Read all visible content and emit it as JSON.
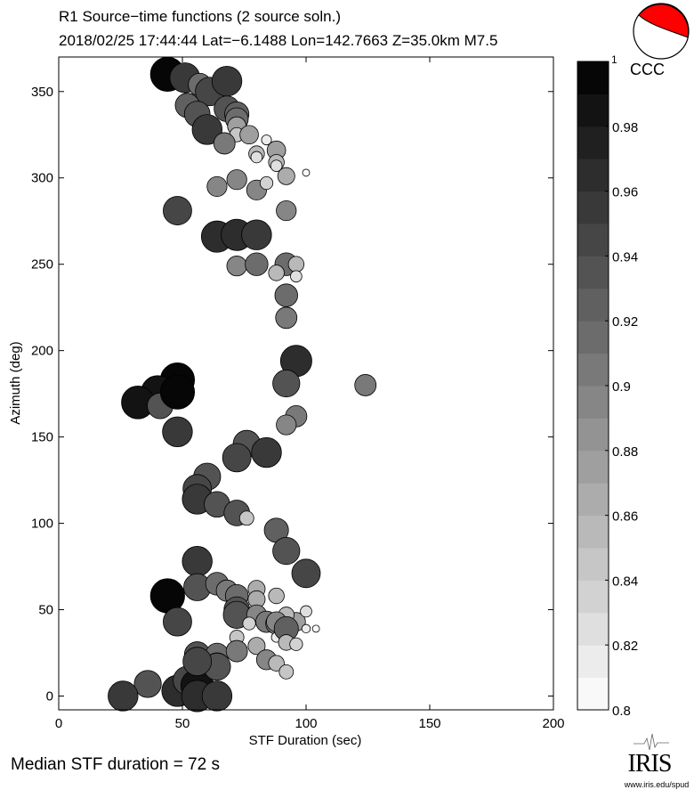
{
  "chart_data": {
    "type": "scatter",
    "title": "R1 Source−time functions (2 source soln.)",
    "subtitle": "2018/02/25 17:44:44  Lat=−6.1488 Lon=142.7663  Z=35.0km  M7.5",
    "xlabel": "STF Duration (sec)",
    "ylabel": "Azimuth (deg)",
    "xlim": [
      0,
      200
    ],
    "ylim": [
      -8,
      370
    ],
    "xticks": [
      "0",
      "50",
      "100",
      "150",
      "200"
    ],
    "xtick_values": [
      0,
      50,
      100,
      150,
      200
    ],
    "yticks": [
      "0",
      "50",
      "100",
      "150",
      "200",
      "250",
      "300",
      "350"
    ],
    "ytick_values": [
      0,
      50,
      100,
      150,
      200,
      250,
      300,
      350
    ],
    "grid": false,
    "colorbar": {
      "label": "CCC",
      "range": [
        0.8,
        1.0
      ],
      "levels": 20,
      "ticks": [
        "1",
        "0.98",
        "0.96",
        "0.94",
        "0.92",
        "0.9",
        "0.88",
        "0.86",
        "0.84",
        "0.82",
        "0.8"
      ],
      "tick_values": [
        1,
        0.98,
        0.96,
        0.94,
        0.92,
        0.9,
        0.88,
        0.86,
        0.84,
        0.82,
        0.8
      ]
    },
    "points_fields": [
      "duration_sec",
      "azimuth_deg",
      "ccc"
    ],
    "points": [
      [
        44,
        360,
        0.99
      ],
      [
        51,
        358,
        0.96
      ],
      [
        57,
        354,
        0.91
      ],
      [
        61,
        350,
        0.95
      ],
      [
        68,
        356,
        0.96
      ],
      [
        52,
        342,
        0.92
      ],
      [
        56,
        337,
        0.93
      ],
      [
        68,
        340,
        0.93
      ],
      [
        72,
        337,
        0.92
      ],
      [
        72,
        334,
        0.91
      ],
      [
        60,
        328,
        0.96
      ],
      [
        72,
        330,
        0.88
      ],
      [
        72,
        325,
        0.85
      ],
      [
        67,
        320,
        0.9
      ],
      [
        77,
        325,
        0.88
      ],
      [
        84,
        322,
        0.82
      ],
      [
        88,
        316,
        0.88
      ],
      [
        80,
        314,
        0.86
      ],
      [
        80,
        312,
        0.83
      ],
      [
        88,
        309,
        0.86
      ],
      [
        88,
        307,
        0.83
      ],
      [
        92,
        301,
        0.87
      ],
      [
        100,
        303,
        0.8
      ],
      [
        64,
        295,
        0.89
      ],
      [
        72,
        299,
        0.89
      ],
      [
        80,
        293,
        0.89
      ],
      [
        84,
        297,
        0.84
      ],
      [
        92,
        281,
        0.89
      ],
      [
        48,
        281,
        0.95
      ],
      [
        64,
        266,
        0.97
      ],
      [
        72,
        267,
        0.97
      ],
      [
        80,
        267,
        0.96
      ],
      [
        72,
        249,
        0.89
      ],
      [
        80,
        250,
        0.91
      ],
      [
        92,
        250,
        0.91
      ],
      [
        96,
        250,
        0.86
      ],
      [
        88,
        245,
        0.86
      ],
      [
        96,
        243,
        0.83
      ],
      [
        92,
        232,
        0.91
      ],
      [
        92,
        219,
        0.9
      ],
      [
        96,
        194,
        0.97
      ],
      [
        124,
        180,
        0.9
      ],
      [
        92,
        181,
        0.94
      ],
      [
        48,
        183,
        0.99
      ],
      [
        40,
        176,
        0.98
      ],
      [
        32,
        170,
        0.98
      ],
      [
        41,
        168,
        0.93
      ],
      [
        48,
        176,
        0.99
      ],
      [
        46,
        154,
        0.88
      ],
      [
        48,
        153,
        0.96
      ],
      [
        96,
        162,
        0.9
      ],
      [
        92,
        157,
        0.89
      ],
      [
        76,
        146,
        0.94
      ],
      [
        72,
        138,
        0.95
      ],
      [
        84,
        141,
        0.96
      ],
      [
        60,
        127,
        0.94
      ],
      [
        56,
        120,
        0.95
      ],
      [
        56,
        114,
        0.96
      ],
      [
        64,
        111,
        0.93
      ],
      [
        72,
        106,
        0.93
      ],
      [
        76,
        103,
        0.85
      ],
      [
        88,
        96,
        0.92
      ],
      [
        92,
        84,
        0.94
      ],
      [
        100,
        71,
        0.95
      ],
      [
        56,
        78,
        0.96
      ],
      [
        44,
        58,
        0.99
      ],
      [
        48,
        43,
        0.95
      ],
      [
        56,
        63,
        0.94
      ],
      [
        64,
        65,
        0.91
      ],
      [
        68,
        61,
        0.9
      ],
      [
        72,
        58,
        0.91
      ],
      [
        72,
        50,
        0.93
      ],
      [
        72,
        47,
        0.94
      ],
      [
        80,
        62,
        0.87
      ],
      [
        80,
        56,
        0.87
      ],
      [
        88,
        58,
        0.86
      ],
      [
        80,
        47,
        0.89
      ],
      [
        84,
        43,
        0.9
      ],
      [
        88,
        42,
        0.9
      ],
      [
        92,
        44,
        0.88
      ],
      [
        96,
        43,
        0.88
      ],
      [
        92,
        47,
        0.86
      ],
      [
        88,
        43,
        0.89
      ],
      [
        100,
        49,
        0.83
      ],
      [
        100,
        39,
        0.81
      ],
      [
        104,
        39,
        0.8
      ],
      [
        88,
        34,
        0.82
      ],
      [
        77,
        42,
        0.84
      ],
      [
        92,
        39,
        0.92
      ],
      [
        72,
        34,
        0.85
      ],
      [
        56,
        24,
        0.93
      ],
      [
        64,
        24,
        0.91
      ],
      [
        64,
        18,
        0.92
      ],
      [
        72,
        26,
        0.9
      ],
      [
        80,
        29,
        0.87
      ],
      [
        84,
        21,
        0.89
      ],
      [
        88,
        19,
        0.86
      ],
      [
        92,
        31,
        0.86
      ],
      [
        96,
        30,
        0.84
      ],
      [
        92,
        14,
        0.85
      ],
      [
        36,
        7,
        0.94
      ],
      [
        26,
        0,
        0.96
      ],
      [
        48,
        3,
        0.97
      ],
      [
        52,
        9,
        0.95
      ],
      [
        56,
        6,
        0.98
      ],
      [
        56,
        0,
        0.97
      ],
      [
        64,
        0,
        0.96
      ],
      [
        64,
        17,
        0.94
      ],
      [
        56,
        20,
        0.95
      ]
    ],
    "annotation": "Median STF duration = 72 s"
  },
  "logo": {
    "text": "IRIS",
    "url_text": "www.iris.edu/spud"
  },
  "colors": {
    "beachball": "#ff0000"
  }
}
